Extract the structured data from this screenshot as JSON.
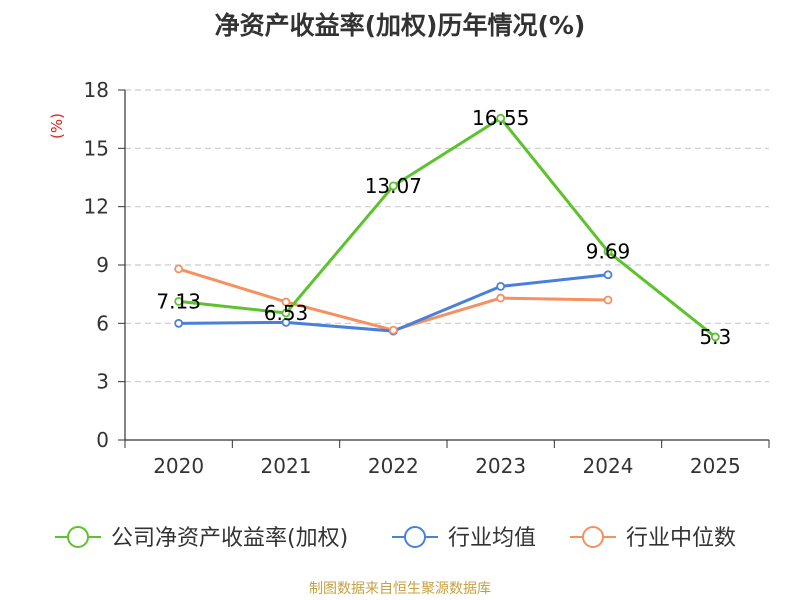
{
  "chart_data": {
    "type": "line",
    "title": "净资产收益率(加权)历年情况(%)",
    "ylabel": "(%)",
    "categories": [
      "2020",
      "2021",
      "2022",
      "2023",
      "2024",
      "2025"
    ],
    "ylim": [
      0,
      18
    ],
    "yticks": [
      0,
      3,
      6,
      9,
      12,
      15,
      18
    ],
    "ytick_labels": [
      "0",
      "3",
      "6",
      "9",
      "12",
      "15",
      "18"
    ],
    "grid": true,
    "legend_position": "bottom",
    "series": [
      {
        "name": "公司净资产收益率(加权)",
        "color": "#5cc22e",
        "values": [
          7.13,
          6.53,
          13.07,
          16.55,
          9.69,
          5.3
        ],
        "labels": [
          "7.13",
          "6.53",
          "13.07",
          "16.55",
          "9.69",
          "5.3"
        ]
      },
      {
        "name": "行业均值",
        "color": "#4a7fdb",
        "values": [
          6.0,
          6.05,
          5.6,
          7.9,
          8.5,
          null
        ],
        "labels": null
      },
      {
        "name": "行业中位数",
        "color": "#f59060",
        "values": [
          8.8,
          7.1,
          5.65,
          7.3,
          7.2,
          null
        ],
        "labels": null
      }
    ]
  },
  "ylabel_color": "#e02020",
  "source": "制图数据来自恒生聚源数据库"
}
